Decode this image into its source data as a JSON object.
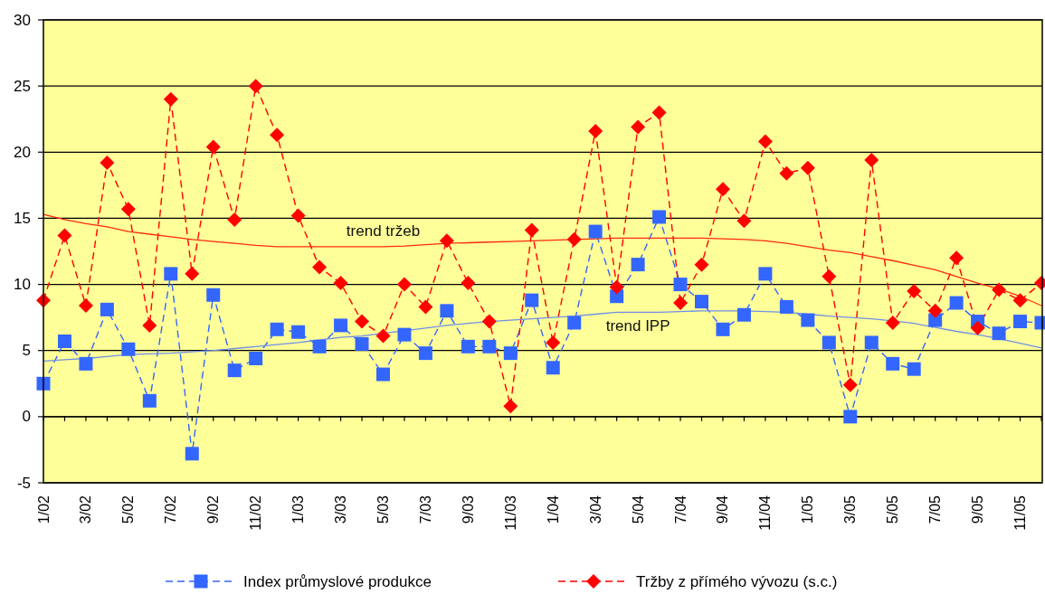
{
  "chart_data": {
    "type": "line",
    "categories": [
      "1/02",
      null,
      "3/02",
      null,
      "5/02",
      null,
      "7/02",
      null,
      "9/02",
      null,
      "11/02",
      null,
      "1/03",
      null,
      "3/03",
      null,
      "5/03",
      null,
      "7/03",
      null,
      "9/03",
      null,
      "11/03",
      null,
      "1/04",
      null,
      "3/04",
      null,
      "5/04",
      null,
      "7/04",
      null,
      "9/04",
      null,
      "11/04",
      null,
      "1/05",
      null,
      "3/05",
      null,
      "5/05",
      null,
      "7/05",
      null,
      "9/05",
      null,
      "11/05",
      null
    ],
    "series": [
      {
        "name": "Index průmyslové produkce",
        "color": "#3366ff",
        "marker": "square",
        "line_style": "dashed",
        "values": [
          2.5,
          5.7,
          4.0,
          8.1,
          5.1,
          1.2,
          10.8,
          -2.8,
          9.2,
          3.5,
          4.4,
          6.6,
          6.4,
          5.3,
          6.9,
          5.5,
          3.2,
          6.2,
          4.8,
          8.0,
          5.3,
          5.3,
          4.8,
          8.8,
          3.7,
          7.1,
          14.0,
          9.1,
          11.5,
          15.1,
          10.0,
          8.7,
          6.6,
          7.7,
          10.8,
          8.3,
          7.3,
          5.6,
          0.0,
          5.6,
          4.0,
          3.6,
          7.3,
          8.6,
          7.2,
          6.3,
          7.2,
          7.1
        ]
      },
      {
        "name": "Tržby z přímého vývozu (s.c.)",
        "color": "#ff0000",
        "marker": "diamond",
        "line_style": "dashed",
        "values": [
          8.8,
          13.7,
          8.4,
          19.2,
          15.7,
          6.9,
          24.0,
          10.8,
          20.4,
          14.9,
          25.0,
          21.3,
          15.2,
          11.3,
          10.1,
          7.2,
          6.1,
          10.0,
          8.3,
          13.3,
          10.1,
          7.2,
          0.8,
          14.1,
          5.6,
          13.4,
          21.6,
          9.8,
          21.9,
          23.0,
          8.6,
          11.5,
          17.2,
          14.8,
          20.8,
          18.4,
          18.8,
          10.6,
          2.4,
          19.4,
          7.1,
          9.5,
          8.0,
          12.0,
          6.7,
          9.6,
          8.8,
          10.1
        ]
      },
      {
        "name": "trend tržeb",
        "color": "#ff2a10",
        "marker": "none",
        "line_style": "solid",
        "values": [
          15.3,
          14.9,
          14.6,
          14.35,
          14.0,
          13.8,
          13.6,
          13.4,
          13.25,
          13.1,
          12.95,
          12.85,
          12.85,
          12.85,
          12.85,
          12.85,
          12.85,
          12.9,
          13.0,
          13.1,
          13.15,
          13.2,
          13.25,
          13.3,
          13.35,
          13.4,
          13.45,
          13.5,
          13.5,
          13.5,
          13.5,
          13.5,
          13.45,
          13.4,
          13.3,
          13.1,
          12.85,
          12.6,
          12.4,
          12.1,
          11.8,
          11.45,
          11.1,
          10.6,
          10.1,
          9.65,
          9.1,
          8.4
        ]
      },
      {
        "name": "trend IPP",
        "color": "#6f8fe8",
        "marker": "none",
        "line_style": "solid",
        "values": [
          4.2,
          4.3,
          4.4,
          4.55,
          4.7,
          4.75,
          4.8,
          4.9,
          5.0,
          5.15,
          5.3,
          5.45,
          5.6,
          5.8,
          6.0,
          6.1,
          6.3,
          6.5,
          6.7,
          6.9,
          7.05,
          7.2,
          7.3,
          7.4,
          7.5,
          7.6,
          7.75,
          7.9,
          7.9,
          7.9,
          7.95,
          8.0,
          8.0,
          8.0,
          7.95,
          7.9,
          7.75,
          7.6,
          7.5,
          7.4,
          7.25,
          7.05,
          6.75,
          6.45,
          6.2,
          5.9,
          5.55,
          5.2
        ]
      }
    ],
    "ylim": [
      -5,
      30
    ],
    "yticks": [
      -5,
      0,
      5,
      10,
      15,
      20,
      25,
      30
    ],
    "grid": "y",
    "legend": "bottom"
  }
}
